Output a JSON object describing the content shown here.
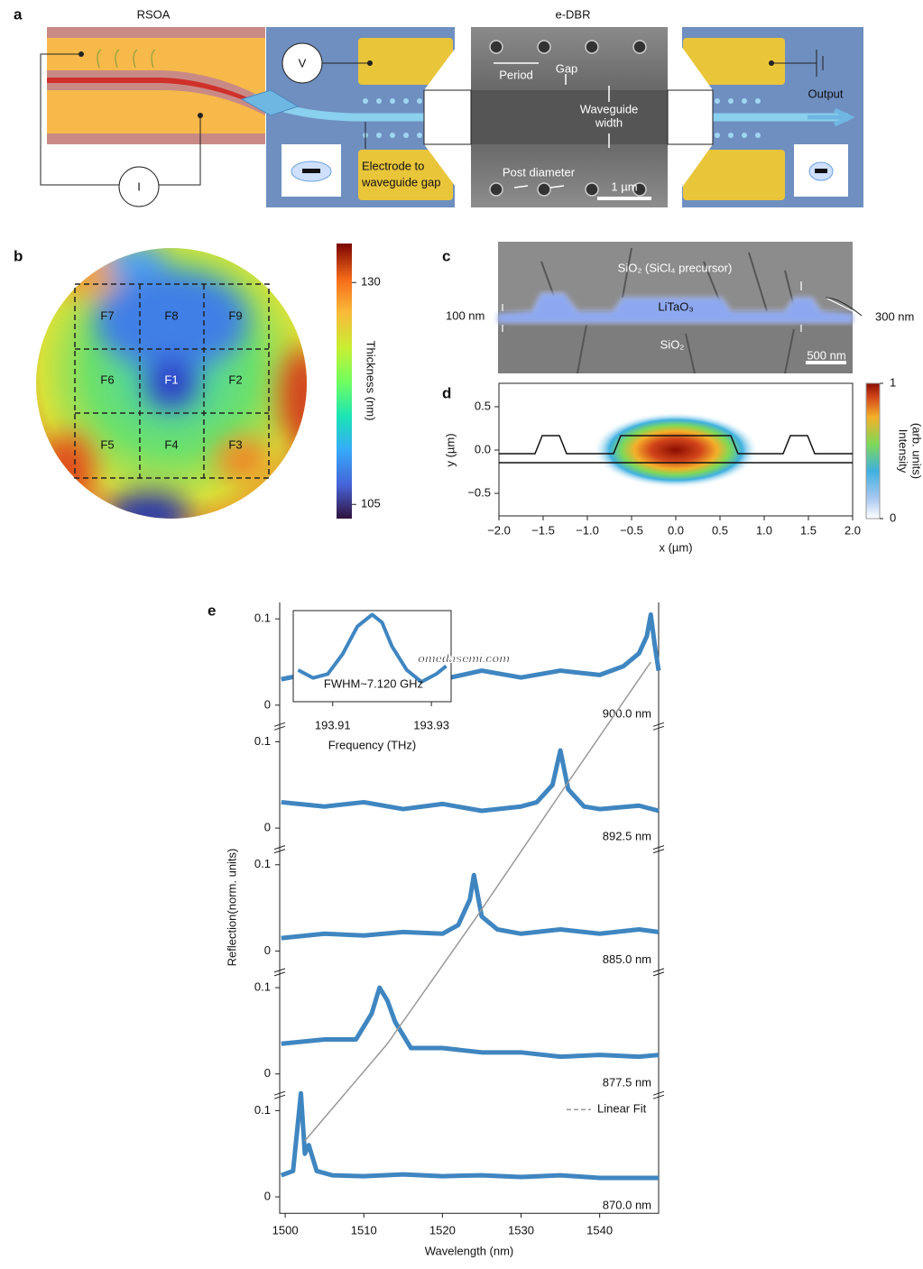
{
  "panel_labels": [
    "a",
    "b",
    "c",
    "d",
    "e"
  ],
  "panel_a": {
    "rsoa": "RSOA",
    "edbr": "e-DBR",
    "voltage": "V",
    "current": "I",
    "period": "Period",
    "gap": "Gap",
    "waveguide_width": [
      "Waveguide",
      "width"
    ],
    "post_diameter": "Post diameter",
    "scale_bar": "1 µm",
    "electrode_gap": [
      "Electrode to",
      "waveguide gap"
    ],
    "output": "Output"
  },
  "panel_b": {
    "fields": [
      "F7",
      "F8",
      "F9",
      "F6",
      "F1",
      "F2",
      "F5",
      "F4",
      "F3"
    ],
    "colorbar_label": "Thickness (nm)",
    "colorbar_ticks": [
      105,
      130
    ],
    "colorbar_lim": [
      103.4,
      134.4
    ]
  },
  "panel_c": {
    "top_layer": "SiO₂ (SiCl₄ precursor)",
    "film": "LiTaO₃",
    "bottom_layer": "SiO₂",
    "left_height": "100 nm",
    "right_height": "300 nm",
    "scale_bar": "500 nm"
  },
  "watermark": "omedasemi.com",
  "chart_data": [
    {
      "type": "heatmap",
      "xlabel": "x (µm)",
      "ylabel": "y (µm)",
      "xlim": [
        -2,
        2
      ],
      "ylim": [
        -0.76,
        0.77
      ],
      "xticks": [
        {
          "value": -2,
          "label": "−2.0"
        },
        {
          "value": -1.5,
          "label": "−1.5"
        },
        {
          "value": -1,
          "label": "−1.0"
        },
        {
          "value": -0.5,
          "label": "−0.5"
        },
        {
          "value": 0,
          "label": "0.0"
        },
        0.5,
        {
          "value": 1,
          "label": "1.0"
        },
        1.5,
        {
          "value": 2,
          "label": "2.0"
        }
      ],
      "yticks": [
        0.5,
        {
          "value": 0,
          "label": "0.0"
        },
        {
          "value": -0.5,
          "label": "−0.5"
        }
      ],
      "colorbar_label": [
        "Intensity",
        "(arb. units)"
      ],
      "clim": [
        0,
        1
      ],
      "colorbar_ticks": [
        0,
        1
      ]
    },
    {
      "type": "line",
      "xlabel": "Wavelength (nm)",
      "ylabel": "Reflection(norm. units)",
      "xlim": [
        1499.3,
        1547.5
      ],
      "xticks": [
        1500,
        1510,
        1520,
        1530,
        1540
      ],
      "ylim": [
        -0.019,
        0.119
      ],
      "yticks": [
        0,
        0.1
      ],
      "color": "#3f86c1",
      "series": [
        {
          "name": "900.0 nm",
          "x": [
            1499.5,
            1505,
            1510,
            1515,
            1520,
            1525,
            1530,
            1535,
            1540,
            1543,
            1545,
            1546,
            1546.5,
            1547,
            1547.5
          ],
          "values": [
            0.03,
            0.04,
            0.035,
            0.042,
            0.03,
            0.04,
            0.032,
            0.04,
            0.035,
            0.045,
            0.06,
            0.08,
            0.105,
            0.07,
            0.04
          ]
        },
        {
          "name": "892.5 nm",
          "x": [
            1499.5,
            1505,
            1510,
            1515,
            1520,
            1525,
            1530,
            1532,
            1534,
            1535,
            1536,
            1538,
            1540,
            1545,
            1547.5
          ],
          "values": [
            0.03,
            0.025,
            0.03,
            0.022,
            0.028,
            0.02,
            0.025,
            0.03,
            0.05,
            0.09,
            0.045,
            0.025,
            0.022,
            0.026,
            0.02
          ]
        },
        {
          "name": "885.0 nm",
          "x": [
            1499.5,
            1505,
            1510,
            1515,
            1520,
            1522,
            1523.5,
            1524,
            1525,
            1527,
            1530,
            1535,
            1540,
            1545,
            1547.5
          ],
          "values": [
            0.015,
            0.02,
            0.018,
            0.022,
            0.02,
            0.03,
            0.06,
            0.088,
            0.04,
            0.025,
            0.02,
            0.025,
            0.02,
            0.025,
            0.022
          ]
        },
        {
          "name": "877.5 nm",
          "x": [
            1499.5,
            1505,
            1509,
            1511,
            1512,
            1513,
            1514,
            1516,
            1520,
            1525,
            1530,
            1535,
            1540,
            1545,
            1547.5
          ],
          "values": [
            0.035,
            0.04,
            0.04,
            0.07,
            0.1,
            0.085,
            0.06,
            0.03,
            0.03,
            0.025,
            0.025,
            0.02,
            0.022,
            0.02,
            0.022
          ]
        },
        {
          "name": "870.0 nm",
          "x": [
            1499.5,
            1501,
            1502,
            1502.5,
            1503,
            1504,
            1506,
            1510,
            1515,
            1520,
            1525,
            1530,
            1535,
            1540,
            1547.5
          ],
          "values": [
            0.025,
            0.03,
            0.12,
            0.05,
            0.06,
            0.03,
            0.025,
            0.024,
            0.026,
            0.024,
            0.025,
            0.023,
            0.025,
            0.022,
            0.022
          ]
        }
      ],
      "fit": {
        "name": "Linear Fit",
        "color": "#999999",
        "x": [
          1546.5,
          1535,
          1524,
          1513,
          1502.5
        ],
        "values": [
          0.05,
          0.04,
          0.035,
          0.035,
          0.065
        ]
      },
      "inset": {
        "xlabel": "Frequency (THz)",
        "annotation": "FWHM~7.120 GHz",
        "xlim": [
          193.902,
          193.934
        ],
        "xticks": [
          193.91,
          193.93
        ],
        "ylim": [
          -0.1,
          1.05
        ],
        "x": [
          193.903,
          193.906,
          193.909,
          193.912,
          193.915,
          193.918,
          193.92,
          193.922,
          193.925,
          193.928,
          193.931,
          193.933
        ],
        "values": [
          0.3,
          0.2,
          0.25,
          0.5,
          0.85,
          1.0,
          0.9,
          0.6,
          0.3,
          0.15,
          0.25,
          0.35
        ]
      }
    }
  ]
}
